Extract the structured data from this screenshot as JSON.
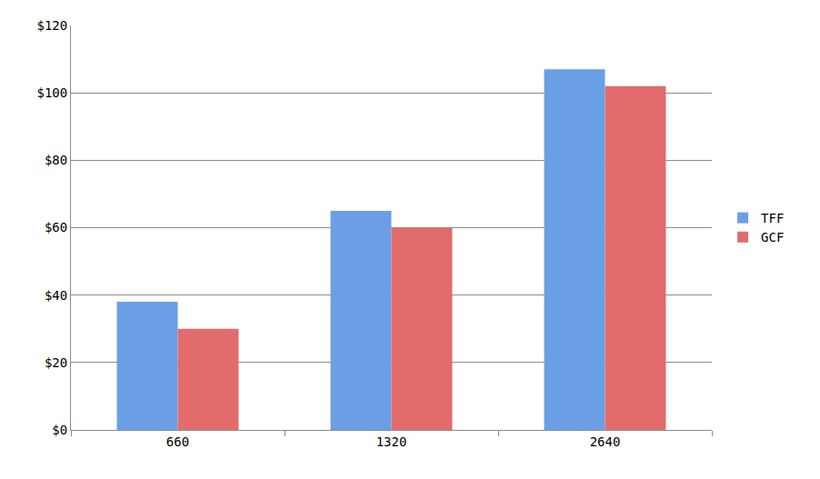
{
  "chart_data": {
    "type": "bar",
    "categories": [
      "660",
      "1320",
      "2640"
    ],
    "series": [
      {
        "name": "TFF",
        "color": "#6a9fe6",
        "values": [
          38,
          65,
          107
        ]
      },
      {
        "name": "GCF",
        "color": "#e26c6c",
        "values": [
          30,
          60,
          102
        ]
      }
    ],
    "ylim": [
      0,
      120
    ],
    "yticks": [
      {
        "value": 0,
        "label": "$0"
      },
      {
        "value": 20,
        "label": "$20"
      },
      {
        "value": 40,
        "label": "$40"
      },
      {
        "value": 60,
        "label": "$60"
      },
      {
        "value": 80,
        "label": "$80"
      },
      {
        "value": 100,
        "label": "$100"
      },
      {
        "value": 120,
        "label": "$120"
      }
    ],
    "grid": true,
    "legend": "right"
  }
}
